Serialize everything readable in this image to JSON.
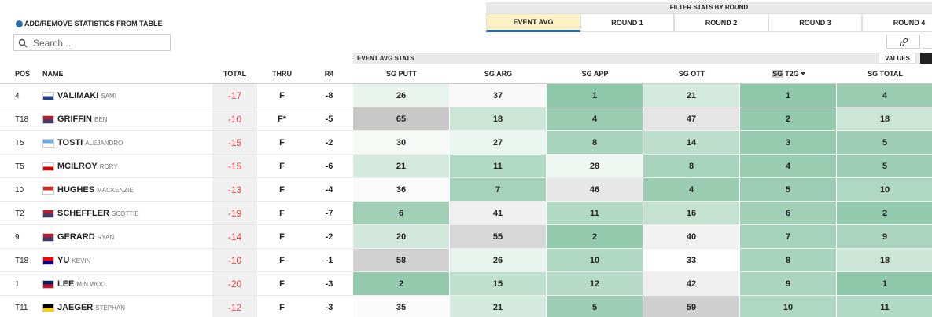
{
  "add_remove": "ADD/REMOVE STATISTICS FROM TABLE",
  "search_placeholder": "Search...",
  "filter": {
    "title": "FILTER STATS BY ROUND",
    "tabs": [
      "EVENT AVG",
      "ROUND 1",
      "ROUND 2",
      "ROUND 3",
      "ROUND 4"
    ]
  },
  "section_title": "EVENT AVG STATS",
  "values_button": "VALUES",
  "table": {
    "columns": [
      "POS",
      "NAME",
      "TOTAL",
      "THRU",
      "R4",
      "SG PUTT",
      "SG ARG",
      "SG APP",
      "SG OTT",
      {
        "highlight": "SG",
        "text": "T2G"
      },
      "SG TOTAL"
    ],
    "rows": [
      {
        "pos": "4",
        "last": "VALIMAKI",
        "first": "SAMI",
        "total": -17,
        "thru": "F",
        "r4": -8,
        "stats": [
          26,
          37,
          1,
          21,
          1,
          4
        ]
      },
      {
        "pos": "T18",
        "last": "GRIFFIN",
        "first": "BEN",
        "total": -10,
        "thru": "F*",
        "r4": -5,
        "stats": [
          65,
          18,
          4,
          47,
          2,
          18
        ]
      },
      {
        "pos": "T5",
        "last": "TOSTI",
        "first": "ALEJANDRO",
        "total": -15,
        "thru": "F",
        "r4": -2,
        "stats": [
          30,
          27,
          8,
          14,
          3,
          5
        ]
      },
      {
        "pos": "T5",
        "last": "MCILROY",
        "first": "RORY",
        "total": -15,
        "thru": "F",
        "r4": -6,
        "stats": [
          21,
          11,
          28,
          8,
          4,
          5
        ]
      },
      {
        "pos": "10",
        "last": "HUGHES",
        "first": "MACKENZIE",
        "total": -13,
        "thru": "F",
        "r4": -4,
        "stats": [
          36,
          7,
          46,
          4,
          5,
          10
        ]
      },
      {
        "pos": "T2",
        "last": "SCHEFFLER",
        "first": "SCOTTIE",
        "total": -19,
        "thru": "F",
        "r4": -7,
        "stats": [
          6,
          41,
          11,
          16,
          6,
          2
        ]
      },
      {
        "pos": "9",
        "last": "GERARD",
        "first": "RYAN",
        "total": -14,
        "thru": "F",
        "r4": -2,
        "stats": [
          20,
          55,
          2,
          40,
          7,
          9
        ]
      },
      {
        "pos": "T18",
        "last": "YU",
        "first": "KEVIN",
        "total": -10,
        "thru": "F",
        "r4": -1,
        "stats": [
          58,
          26,
          10,
          33,
          8,
          18
        ]
      },
      {
        "pos": "1",
        "last": "LEE",
        "first": "MIN WOO",
        "total": -20,
        "thru": "F",
        "r4": -3,
        "stats": [
          2,
          15,
          12,
          42,
          9,
          1
        ]
      },
      {
        "pos": "T11",
        "last": "JAEGER",
        "first": "STEPHAN",
        "total": -12,
        "thru": "F",
        "r4": -3,
        "stats": [
          35,
          21,
          5,
          59,
          10,
          11
        ]
      }
    ]
  }
}
